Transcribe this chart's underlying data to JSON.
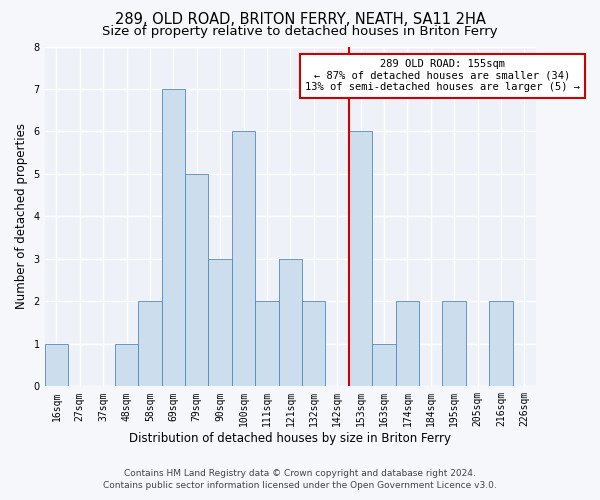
{
  "title": "289, OLD ROAD, BRITON FERRY, NEATH, SA11 2HA",
  "subtitle": "Size of property relative to detached houses in Briton Ferry",
  "xlabel": "Distribution of detached houses by size in Briton Ferry",
  "ylabel": "Number of detached properties",
  "footnote1": "Contains HM Land Registry data © Crown copyright and database right 2024.",
  "footnote2": "Contains public sector information licensed under the Open Government Licence v3.0.",
  "bar_labels": [
    "16sqm",
    "27sqm",
    "37sqm",
    "48sqm",
    "58sqm",
    "69sqm",
    "79sqm",
    "90sqm",
    "100sqm",
    "111sqm",
    "121sqm",
    "132sqm",
    "142sqm",
    "153sqm",
    "163sqm",
    "174sqm",
    "184sqm",
    "195sqm",
    "205sqm",
    "216sqm",
    "226sqm"
  ],
  "bar_values": [
    1,
    0,
    0,
    1,
    2,
    7,
    5,
    3,
    6,
    2,
    3,
    2,
    0,
    6,
    1,
    2,
    0,
    2,
    0,
    2,
    0
  ],
  "bar_color": "#ccdded",
  "bar_edge_color": "#5588bb",
  "highlight_bar_index": 13,
  "highlight_line_color": "#cc0000",
  "annotation_text": "289 OLD ROAD: 155sqm\n← 87% of detached houses are smaller (34)\n13% of semi-detached houses are larger (5) →",
  "annotation_box_color": "#cc0000",
  "ylim": [
    0,
    8
  ],
  "yticks": [
    0,
    1,
    2,
    3,
    4,
    5,
    6,
    7,
    8
  ],
  "background_color": "#eef2f8",
  "grid_color": "#ffffff",
  "fig_background": "#f5f7fa",
  "title_fontsize": 10.5,
  "subtitle_fontsize": 9.5,
  "xlabel_fontsize": 8.5,
  "ylabel_fontsize": 8.5,
  "tick_fontsize": 7,
  "annotation_fontsize": 7.5,
  "footnote_fontsize": 6.5
}
